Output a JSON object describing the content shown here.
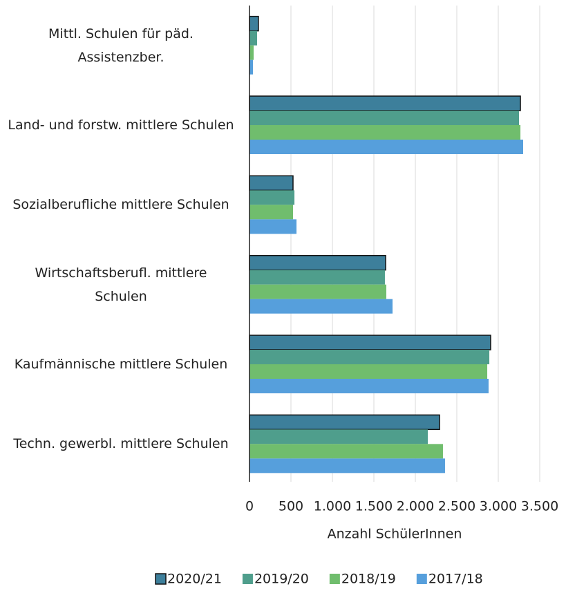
{
  "chart_data": {
    "type": "bar",
    "orientation": "horizontal",
    "categories": [
      "Mittl. Schulen für päd. Assistenzber.",
      "Land- und forstw. mittlere Schulen",
      "Sozialberufliche mittlere Schulen",
      "Wirtschaftsberufl. mittlere Schulen",
      "Kaufmännische mittlere Schulen",
      "Techn. gewerbl. mittlere Schulen"
    ],
    "series": [
      {
        "name": "2020/21",
        "color": "#3d7f9b",
        "values": [
          108,
          3267,
          525,
          1642,
          2908,
          2292
        ]
      },
      {
        "name": "2019/20",
        "color": "#4f9e8c",
        "values": [
          92,
          3250,
          542,
          1633,
          2892,
          2150
        ]
      },
      {
        "name": "2018/19",
        "color": "#70bd6d",
        "values": [
          50,
          3267,
          525,
          1650,
          2867,
          2333
        ]
      },
      {
        "name": "2017/18",
        "color": "#569fdc",
        "values": [
          42,
          3300,
          567,
          1725,
          2883,
          2358
        ]
      }
    ],
    "xlabel": "Anzahl SchülerInnen",
    "xlim": [
      0,
      3500
    ],
    "xticks": [
      0,
      500,
      {
        "value": 1000,
        "label": "1.000"
      },
      {
        "value": 1500,
        "label": "1.500"
      },
      {
        "value": 2000,
        "label": "2.000"
      },
      {
        "value": 2500,
        "label": "2.500"
      },
      {
        "value": 3000,
        "label": "3.000"
      },
      {
        "value": 3500,
        "label": "3.500"
      }
    ],
    "grid": true,
    "legend": "bottom"
  }
}
